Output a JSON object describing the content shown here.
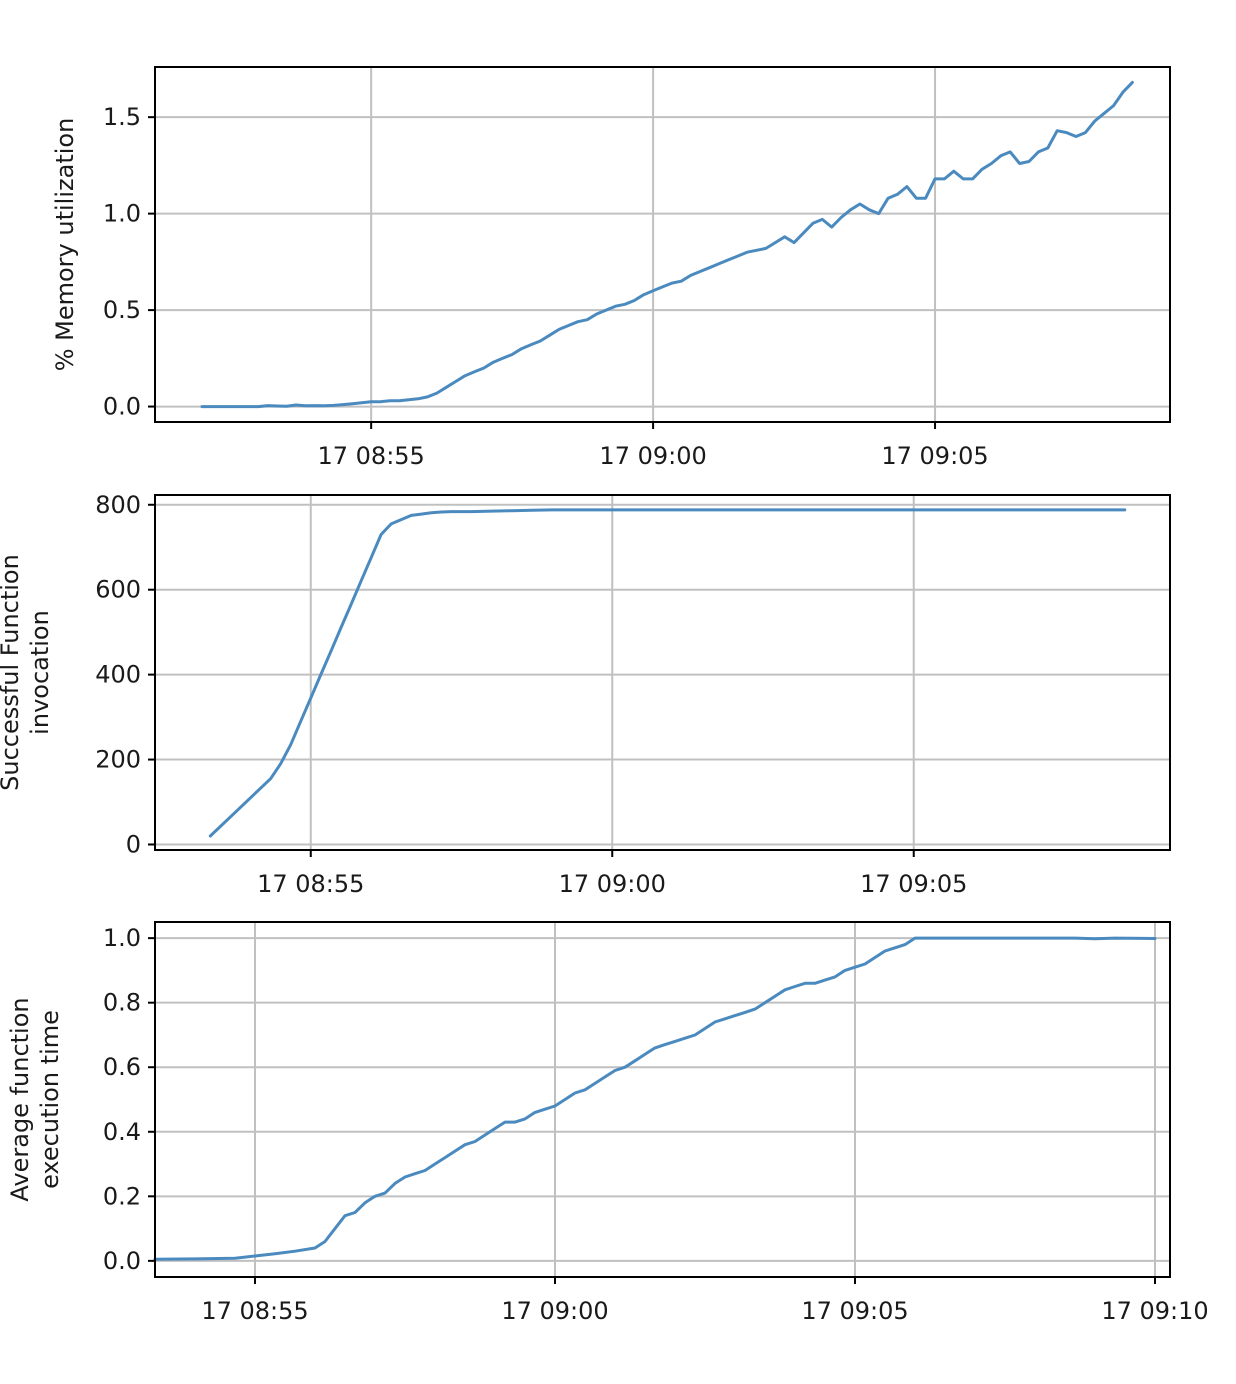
{
  "line_color": "#4a8abf",
  "chart_data": [
    {
      "type": "line",
      "ylabel": [
        "% Memory utilization"
      ],
      "xlim": [
        "08:51:10",
        "09:09:10"
      ],
      "ylim": [
        -0.08,
        1.76
      ],
      "x_ticks": [
        {
          "time": "08:55:00",
          "label": "17 08:55"
        },
        {
          "time": "09:00:00",
          "label": "17 09:00"
        },
        {
          "time": "09:05:00",
          "label": "17 09:05"
        }
      ],
      "y_ticks": [
        {
          "value": 0.0,
          "label": "0.0"
        },
        {
          "value": 0.5,
          "label": "0.5"
        },
        {
          "value": 1.0,
          "label": "1.0"
        },
        {
          "value": 1.5,
          "label": "1.5"
        }
      ],
      "grid": true,
      "series": [
        {
          "x": [
            "08:52:00",
            "08:52:30",
            "08:53:00",
            "08:53:10",
            "08:53:20",
            "08:53:30",
            "08:53:40",
            "08:53:50",
            "08:54:00",
            "08:54:10",
            "08:54:20",
            "08:54:30",
            "08:54:40",
            "08:54:50",
            "08:55:00",
            "08:55:10",
            "08:55:20",
            "08:55:30",
            "08:55:40",
            "08:55:50",
            "08:56:00",
            "08:56:10",
            "08:56:20",
            "08:56:30",
            "08:56:40",
            "08:56:50",
            "08:57:00",
            "08:57:10",
            "08:57:20",
            "08:57:30",
            "08:57:40",
            "08:57:50",
            "08:58:00",
            "08:58:10",
            "08:58:20",
            "08:58:30",
            "08:58:40",
            "08:58:50",
            "08:59:00",
            "08:59:10",
            "08:59:20",
            "08:59:30",
            "08:59:40",
            "08:59:50",
            "09:00:00",
            "09:00:10",
            "09:00:20",
            "09:00:30",
            "09:00:40",
            "09:00:50",
            "09:01:00",
            "09:01:10",
            "09:01:20",
            "09:01:30",
            "09:01:40",
            "09:01:50",
            "09:02:00",
            "09:02:10",
            "09:02:20",
            "09:02:30",
            "09:02:40",
            "09:02:50",
            "09:03:00",
            "09:03:10",
            "09:03:20",
            "09:03:30",
            "09:03:40",
            "09:03:50",
            "09:04:00",
            "09:04:10",
            "09:04:20",
            "09:04:30",
            "09:04:40",
            "09:04:50",
            "09:05:00",
            "09:05:10",
            "09:05:20",
            "09:05:30",
            "09:05:40",
            "09:05:50",
            "09:06:00",
            "09:06:10",
            "09:06:20",
            "09:06:30",
            "09:06:40",
            "09:06:50",
            "09:07:00",
            "09:07:10",
            "09:07:20",
            "09:07:30",
            "09:07:40",
            "09:07:50",
            "09:08:00",
            "09:08:10",
            "09:08:20",
            "09:08:30"
          ],
          "y": [
            0.0,
            0.0,
            0.0,
            0.005,
            0.003,
            0.002,
            0.008,
            0.004,
            0.005,
            0.004,
            0.006,
            0.01,
            0.015,
            0.02,
            0.025,
            0.025,
            0.03,
            0.03,
            0.035,
            0.04,
            0.05,
            0.07,
            0.1,
            0.13,
            0.16,
            0.18,
            0.2,
            0.23,
            0.25,
            0.27,
            0.3,
            0.32,
            0.34,
            0.37,
            0.4,
            0.42,
            0.44,
            0.45,
            0.48,
            0.5,
            0.52,
            0.53,
            0.55,
            0.58,
            0.6,
            0.62,
            0.64,
            0.65,
            0.68,
            0.7,
            0.72,
            0.74,
            0.76,
            0.78,
            0.8,
            0.81,
            0.82,
            0.85,
            0.88,
            0.85,
            0.9,
            0.95,
            0.97,
            0.93,
            0.98,
            1.02,
            1.05,
            1.02,
            1.0,
            1.08,
            1.1,
            1.14,
            1.08,
            1.08,
            1.18,
            1.18,
            1.22,
            1.18,
            1.18,
            1.23,
            1.26,
            1.3,
            1.32,
            1.26,
            1.27,
            1.32,
            1.34,
            1.43,
            1.42,
            1.4,
            1.42,
            1.48,
            1.52,
            1.56,
            1.63,
            1.68
          ]
        }
      ]
    },
    {
      "type": "line",
      "ylabel": [
        "Successful Function",
        "invocation"
      ],
      "xlim": [
        "08:52:25",
        "09:09:15"
      ],
      "ylim": [
        -13,
        823
      ],
      "x_ticks": [
        {
          "time": "08:55:00",
          "label": "17 08:55"
        },
        {
          "time": "09:00:00",
          "label": "17 09:00"
        },
        {
          "time": "09:05:00",
          "label": "17 09:05"
        }
      ],
      "y_ticks": [
        {
          "value": 0,
          "label": "0"
        },
        {
          "value": 200,
          "label": "200"
        },
        {
          "value": 400,
          "label": "400"
        },
        {
          "value": 600,
          "label": "600"
        },
        {
          "value": 800,
          "label": "800"
        }
      ],
      "grid": true,
      "series": [
        {
          "x": [
            "08:53:20",
            "08:53:40",
            "08:54:00",
            "08:54:20",
            "08:54:30",
            "08:54:40",
            "08:54:50",
            "08:55:00",
            "08:55:10",
            "08:55:20",
            "08:55:30",
            "08:55:40",
            "08:55:50",
            "08:56:00",
            "08:56:10",
            "08:56:20",
            "08:56:30",
            "08:56:40",
            "08:56:50",
            "08:57:00",
            "08:57:10",
            "08:57:20",
            "08:57:30",
            "08:57:40",
            "08:58:00",
            "08:58:20",
            "08:58:40",
            "08:59:00",
            "08:59:30",
            "09:00:00",
            "09:01:00",
            "09:02:00",
            "09:04:00",
            "09:06:00",
            "09:08:00",
            "09:08:30"
          ],
          "y": [
            20,
            65,
            110,
            155,
            190,
            235,
            290,
            345,
            400,
            455,
            510,
            565,
            620,
            675,
            730,
            755,
            765,
            775,
            778,
            781,
            783,
            784,
            784,
            784,
            785,
            786,
            787,
            788,
            788,
            788,
            788,
            788,
            788,
            788,
            788,
            788
          ]
        }
      ]
    },
    {
      "type": "line",
      "ylabel": [
        "Average function",
        "execution time"
      ],
      "xlim": [
        "08:53:20",
        "09:10:15"
      ],
      "ylim": [
        -0.05,
        1.05
      ],
      "x_ticks": [
        {
          "time": "08:55:00",
          "label": "17 08:55"
        },
        {
          "time": "09:00:00",
          "label": "17 09:00"
        },
        {
          "time": "09:05:00",
          "label": "17 09:05"
        },
        {
          "time": "09:10:00",
          "label": "17 09:10"
        }
      ],
      "y_ticks": [
        {
          "value": 0.0,
          "label": "0.0"
        },
        {
          "value": 0.2,
          "label": "0.2"
        },
        {
          "value": 0.4,
          "label": "0.4"
        },
        {
          "value": 0.6,
          "label": "0.6"
        },
        {
          "value": 0.8,
          "label": "0.8"
        },
        {
          "value": 1.0,
          "label": "1.0"
        }
      ],
      "grid": true,
      "series": [
        {
          "x": [
            "08:53:20",
            "08:54:00",
            "08:54:40",
            "08:55:00",
            "08:55:20",
            "08:55:40",
            "08:56:00",
            "08:56:10",
            "08:56:20",
            "08:56:30",
            "08:56:40",
            "08:56:50",
            "08:57:00",
            "08:57:10",
            "08:57:20",
            "08:57:30",
            "08:57:40",
            "08:57:50",
            "08:58:00",
            "08:58:10",
            "08:58:20",
            "08:58:30",
            "08:58:40",
            "08:58:50",
            "08:59:00",
            "08:59:10",
            "08:59:20",
            "08:59:30",
            "08:59:40",
            "08:59:50",
            "09:00:00",
            "09:00:10",
            "09:00:20",
            "09:00:30",
            "09:00:40",
            "09:00:50",
            "09:01:00",
            "09:01:10",
            "09:01:20",
            "09:01:30",
            "09:01:40",
            "09:01:50",
            "09:02:00",
            "09:02:10",
            "09:02:20",
            "09:02:30",
            "09:02:40",
            "09:02:50",
            "09:03:00",
            "09:03:10",
            "09:03:20",
            "09:03:30",
            "09:03:40",
            "09:03:50",
            "09:04:00",
            "09:04:10",
            "09:04:20",
            "09:04:30",
            "09:04:40",
            "09:04:50",
            "09:05:00",
            "09:05:10",
            "09:05:20",
            "09:05:30",
            "09:05:40",
            "09:05:50",
            "09:06:00",
            "09:06:10",
            "09:06:20",
            "09:07:00",
            "09:08:00",
            "09:08:40",
            "09:09:00",
            "09:09:20",
            "09:10:00"
          ],
          "y": [
            0.005,
            0.006,
            0.008,
            0.015,
            0.022,
            0.03,
            0.04,
            0.06,
            0.1,
            0.14,
            0.15,
            0.18,
            0.2,
            0.21,
            0.24,
            0.26,
            0.27,
            0.28,
            0.3,
            0.32,
            0.34,
            0.36,
            0.37,
            0.39,
            0.41,
            0.43,
            0.43,
            0.44,
            0.46,
            0.47,
            0.48,
            0.5,
            0.52,
            0.53,
            0.55,
            0.57,
            0.59,
            0.6,
            0.62,
            0.64,
            0.66,
            0.67,
            0.68,
            0.69,
            0.7,
            0.72,
            0.74,
            0.75,
            0.76,
            0.77,
            0.78,
            0.8,
            0.82,
            0.84,
            0.85,
            0.86,
            0.86,
            0.87,
            0.88,
            0.9,
            0.91,
            0.92,
            0.94,
            0.96,
            0.97,
            0.98,
            1.0,
            1.0,
            1.0,
            1.0,
            1.0,
            1.0,
            0.998,
            1.0,
            0.999
          ]
        }
      ]
    }
  ]
}
